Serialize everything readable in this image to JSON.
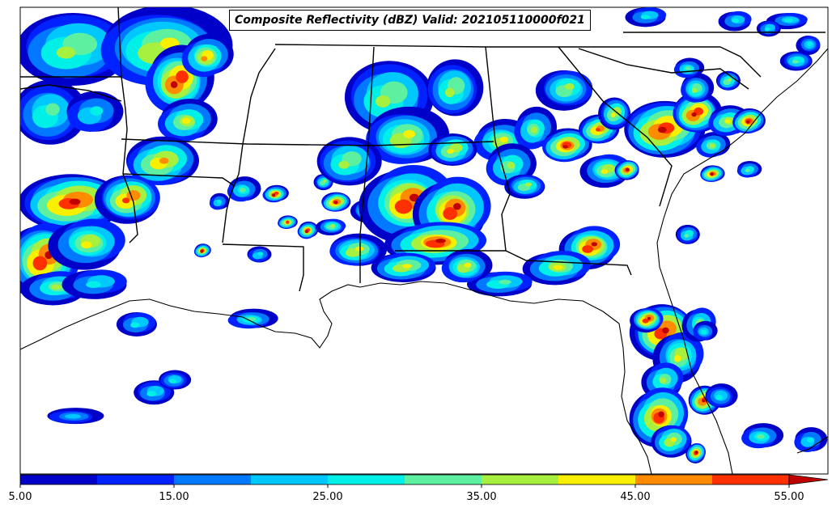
{
  "map": {
    "title": "Composite Reflectivity (dBZ) Valid: 202105110000f021",
    "region": "Southeastern United States",
    "variable": "Composite Reflectivity",
    "units": "dBZ"
  },
  "colorbar": {
    "min": 5,
    "max": 55,
    "step": 5,
    "extend": "max",
    "tick_labels": [
      "5.00",
      "15.00",
      "25.00",
      "35.00",
      "45.00",
      "55.00"
    ],
    "colors": [
      "#0000c8",
      "#0022ff",
      "#0078ff",
      "#00c8ff",
      "#00f0e8",
      "#5cf0a0",
      "#a8f040",
      "#f8f000",
      "#ff8c00",
      "#ff3000",
      "#c00000"
    ]
  },
  "colors": {
    "background": "#ffffff",
    "boundaries": "#000000"
  }
}
